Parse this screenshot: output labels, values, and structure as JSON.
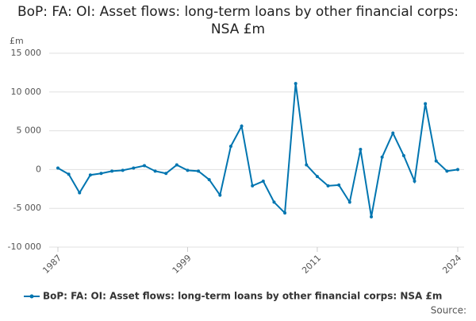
{
  "chart_data": {
    "type": "line",
    "title": "BoP: FA: OI: Asset flows: long-term loans by other financial corps: NSA £m",
    "y_label": "£m",
    "source": "Source:",
    "x": [
      1987,
      1988,
      1989,
      1990,
      1991,
      1992,
      1993,
      1994,
      1995,
      1996,
      1997,
      1998,
      1999,
      2000,
      2001,
      2002,
      2003,
      2004,
      2005,
      2006,
      2007,
      2008,
      2009,
      2010,
      2011,
      2012,
      2013,
      2014,
      2015,
      2016,
      2017,
      2018,
      2019,
      2020,
      2021,
      2022,
      2023,
      2024
    ],
    "xlim": [
      1987,
      2024
    ],
    "xticks": [
      1987,
      1999,
      2011,
      2024
    ],
    "ylim": [
      -10000,
      15000
    ],
    "yticks": [
      {
        "value": -10000,
        "label": "-10 000"
      },
      {
        "value": -5000,
        "label": "-5 000"
      },
      0,
      {
        "value": 5000,
        "label": "5 000"
      },
      {
        "value": 10000,
        "label": "10 000"
      },
      {
        "value": 15000,
        "label": "15 000"
      }
    ],
    "grid": true,
    "series": [
      {
        "name": "BoP: FA: OI: Asset flows: long-term loans by other financial corps: NSA £m",
        "color": "#0075b0",
        "values": [
          200,
          -600,
          -3000,
          -700,
          -500,
          -200,
          -100,
          200,
          500,
          -200,
          -500,
          600,
          -100,
          -200,
          -1300,
          -3300,
          3000,
          5600,
          -2100,
          -1500,
          -4200,
          -5600,
          11100,
          600,
          -900,
          -2100,
          -2000,
          -4200,
          2600,
          -6100,
          1600,
          4700,
          1800,
          -1500,
          8500,
          1100,
          -200,
          0
        ]
      }
    ]
  }
}
